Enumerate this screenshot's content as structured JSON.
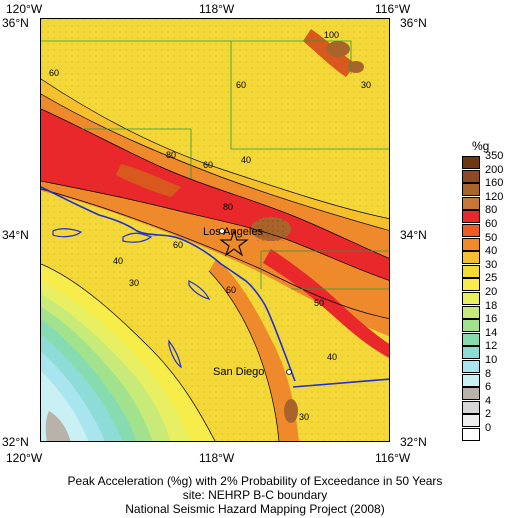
{
  "map": {
    "lon_labels_top": [
      "120°W",
      "118°W",
      "116°W"
    ],
    "lon_labels_bottom": [
      "120°W",
      "118°W",
      "116°W"
    ],
    "lat_labels_left": [
      "36°N",
      "34°N",
      "32°N"
    ],
    "lat_labels_right": [
      "36°N",
      "34°N",
      "32°N"
    ],
    "contour_labels": [
      "100",
      "60",
      "40",
      "60",
      "80",
      "60",
      "80",
      "40",
      "30",
      "60",
      "60",
      "50",
      "40",
      "30",
      "30"
    ],
    "cities": [
      "Los Angeles",
      "San Diego"
    ],
    "colors": {
      "ocean_low": "#c9f0f4",
      "base_yellow": "#f3d838",
      "orange": "#ef8a2c",
      "red": "#e8282a",
      "dark_orange": "#d8581e",
      "brown": "#a9642b",
      "boundary_blue": "#1f2fd0",
      "star": "#000000"
    }
  },
  "legend": {
    "title": "%g",
    "items": [
      {
        "label": "350",
        "color": "#6e3612"
      },
      {
        "label": "200",
        "color": "#8c4b24"
      },
      {
        "label": "160",
        "color": "#a9642b"
      },
      {
        "label": "120",
        "color": "#c87638"
      },
      {
        "label": "80",
        "color": "#e8282a"
      },
      {
        "label": "60",
        "color": "#f05a24"
      },
      {
        "label": "50",
        "color": "#f28a2c"
      },
      {
        "label": "40",
        "color": "#f5c02c"
      },
      {
        "label": "30",
        "color": "#f7dc30"
      },
      {
        "label": "25",
        "color": "#f6ec4a"
      },
      {
        "label": "20",
        "color": "#e8ef62"
      },
      {
        "label": "18",
        "color": "#c7ea78"
      },
      {
        "label": "16",
        "color": "#a2e28c"
      },
      {
        "label": "14",
        "color": "#86dcb0"
      },
      {
        "label": "12",
        "color": "#8edcd8"
      },
      {
        "label": "10",
        "color": "#a9e5ee"
      },
      {
        "label": "8",
        "color": "#cbf0f4"
      },
      {
        "label": "6",
        "color": "#b8b2aa"
      },
      {
        "label": "4",
        "color": "#d6d6d6"
      },
      {
        "label": "2",
        "color": "#eeeeee"
      },
      {
        "label": "0",
        "color": "#ffffff"
      }
    ]
  },
  "caption": {
    "line1": "Peak Acceleration (%g) with 2% Probability of Exceedance in 50 Years",
    "line2": "site: NEHRP B-C boundary",
    "line3": "National Seismic Hazard Mapping Project (2008)"
  }
}
